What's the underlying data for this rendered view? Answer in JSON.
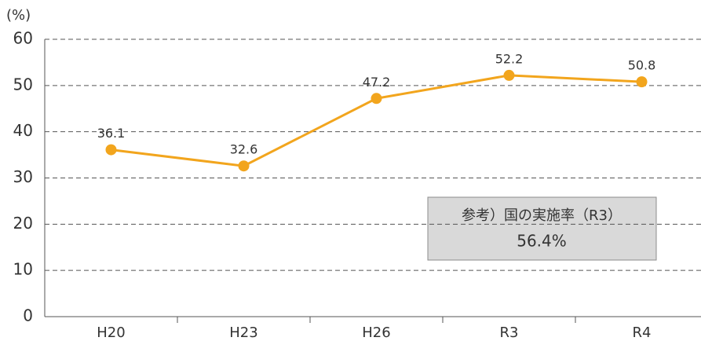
{
  "chart_data": {
    "type": "line",
    "y_axis_label": "(%)",
    "categories": [
      "H20",
      "H23",
      "H26",
      "R3",
      "R4"
    ],
    "values": [
      36.1,
      32.6,
      47.2,
      52.2,
      50.8
    ],
    "color": "#f2a51d",
    "ylim": [
      0,
      60
    ],
    "yticks": [
      0,
      10,
      20,
      30,
      40,
      50,
      60
    ],
    "grid": true,
    "annotation": [
      "参考）国の実施率（R3）",
      "56.4%"
    ]
  }
}
